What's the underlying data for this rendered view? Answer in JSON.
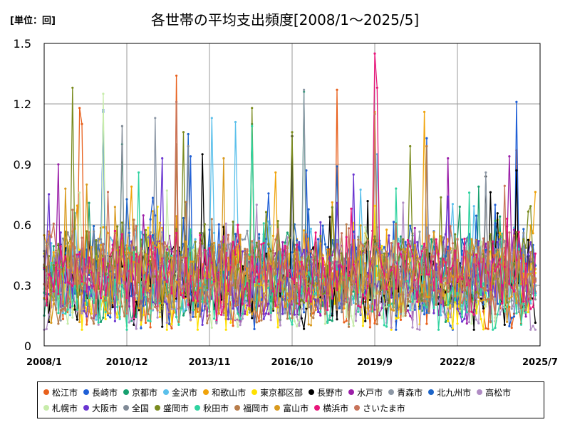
{
  "unit_label": "[単位：回]",
  "title": "各世帯の平均支出頻度[2008/1～2025/5]",
  "chart_data": {
    "type": "line",
    "title": "各世帯の平均支出頻度[2008/1～2025/5]",
    "ylabel": "[単位：回]",
    "ylim": [
      0,
      1.5
    ],
    "yticks": [
      0,
      0.3,
      0.6,
      0.9,
      1.2,
      1.5
    ],
    "ytick_labels": [
      "0",
      "0.3",
      "0.6",
      "0.9",
      "1.2",
      "1.5"
    ],
    "x_range": [
      "2008-01",
      "2025-07"
    ],
    "xticks": [
      "2008-01",
      "2010-12",
      "2013-11",
      "2016-10",
      "2019-09",
      "2022-08",
      "2025-07"
    ],
    "xtick_labels": [
      "2008/1",
      "2010/12",
      "2013/11",
      "2016/10",
      "2019/9",
      "2022/8",
      "2025/7"
    ],
    "grid": true,
    "legend_position": "bottom",
    "series": [
      {
        "name": "松江市",
        "color": "#e8601c",
        "peaks": [
          [
            "2009-04",
            1.18
          ],
          [
            "2009-05",
            1.1
          ],
          [
            "2012-09",
            1.34
          ],
          [
            "2018-05",
            1.27
          ],
          [
            "2024-09",
            0.97
          ]
        ]
      },
      {
        "name": "長崎市",
        "color": "#1f5fd6",
        "peaks": [
          [
            "2010-02",
            1.17
          ],
          [
            "2013-03",
            0.94
          ],
          [
            "2017-04",
            0.87
          ],
          [
            "2021-07",
            1.03
          ],
          [
            "2024-09",
            1.21
          ]
        ]
      },
      {
        "name": "京都市",
        "color": "#17a06f",
        "peaks": [
          [
            "2010-10",
            1.0
          ],
          [
            "2015-05",
            1.1
          ],
          [
            "2017-03",
            1.26
          ],
          [
            "2023-05",
            0.79
          ]
        ]
      },
      {
        "name": "金沢市",
        "color": "#5bc0eb",
        "peaks": [
          [
            "2013-12",
            1.13
          ],
          [
            "2014-10",
            1.11
          ],
          [
            "2019-10",
            0.95
          ]
        ]
      },
      {
        "name": "和歌山市",
        "color": "#f0a30a",
        "peaks": [
          [
            "2011-02",
            0.79
          ],
          [
            "2016-03",
            0.86
          ],
          [
            "2021-06",
            1.16
          ]
        ]
      },
      {
        "name": "東京都区部",
        "color": "#ffe100",
        "peaks": [
          [
            "2012-01",
            0.69
          ],
          [
            "2018-12",
            0.61
          ]
        ]
      },
      {
        "name": "長野市",
        "color": "#000000",
        "peaks": [
          [
            "2013-08",
            0.95
          ],
          [
            "2016-10",
            1.04
          ],
          [
            "2023-08",
            0.84
          ],
          [
            "2024-09",
            0.87
          ]
        ]
      },
      {
        "name": "水戸市",
        "color": "#9b1fa8",
        "peaks": [
          [
            "2008-07",
            0.9
          ],
          [
            "2022-04",
            0.93
          ],
          [
            "2024-06",
            0.94
          ]
        ]
      },
      {
        "name": "青森市",
        "color": "#8c97a5",
        "peaks": [
          [
            "2011-12",
            1.13
          ],
          [
            "2017-03",
            1.27
          ],
          [
            "2023-08",
            0.86
          ]
        ]
      },
      {
        "name": "北九州市",
        "color": "#1c64c8",
        "peaks": [
          [
            "2010-02",
            1.16
          ],
          [
            "2013-02",
            1.05
          ],
          [
            "2018-05",
            0.89
          ]
        ]
      },
      {
        "name": "高松市",
        "color": "#b08cc4",
        "peaks": [
          [
            "2015-07",
            0.7
          ],
          [
            "2020-09",
            0.71
          ]
        ]
      },
      {
        "name": "札幌市",
        "color": "#c7ecaa",
        "peaks": [
          [
            "2010-02",
            1.25
          ],
          [
            "2012-05",
            0.77
          ]
        ]
      },
      {
        "name": "大阪市",
        "color": "#6a36d1",
        "peaks": [
          [
            "2012-03",
            0.93
          ],
          [
            "2018-12",
            0.85
          ],
          [
            "2022-04",
            0.74
          ]
        ]
      },
      {
        "name": "全国",
        "color": "#808a96",
        "peaks": [
          [
            "2010-10",
            1.09
          ],
          [
            "2013-02",
            0.99
          ]
        ]
      },
      {
        "name": "盛岡市",
        "color": "#7a8b1f",
        "peaks": [
          [
            "2009-01",
            1.28
          ],
          [
            "2012-12",
            1.06
          ],
          [
            "2015-05",
            1.18
          ],
          [
            "2016-10",
            1.06
          ],
          [
            "2020-12",
            0.99
          ]
        ]
      },
      {
        "name": "秋田市",
        "color": "#2fd3a0",
        "peaks": [
          [
            "2011-05",
            0.86
          ],
          [
            "2015-05",
            1.09
          ],
          [
            "2020-06",
            0.78
          ],
          [
            "2023-01",
            0.76
          ]
        ]
      },
      {
        "name": "福岡市",
        "color": "#b87d4b",
        "peaks": [
          [
            "2012-09",
            1.0
          ],
          [
            "2021-07",
            0.99
          ]
        ]
      },
      {
        "name": "富山市",
        "color": "#d99a1e",
        "peaks": [
          [
            "2009-07",
            0.8
          ],
          [
            "2014-05",
            0.93
          ],
          [
            "2019-09",
            1.16
          ]
        ]
      },
      {
        "name": "横浜市",
        "color": "#e8157a",
        "peaks": [
          [
            "2019-09",
            1.45
          ],
          [
            "2019-10",
            1.28
          ]
        ]
      },
      {
        "name": "さいたま市",
        "color": "#c8735a",
        "peaks": [
          [
            "2012-09",
            1.21
          ],
          [
            "2019-09",
            1.15
          ]
        ]
      }
    ]
  }
}
